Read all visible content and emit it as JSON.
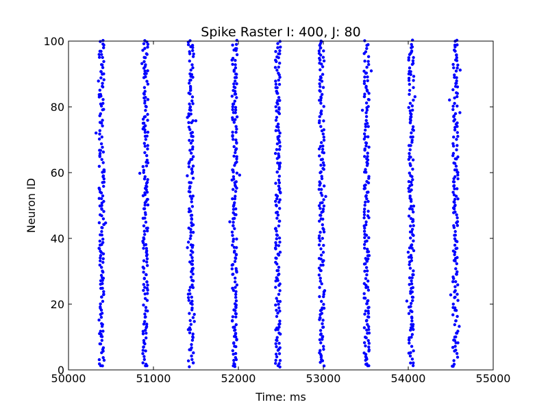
{
  "chart_data": {
    "type": "scatter",
    "title": "Spike Raster I: 400, J: 80",
    "xlabel": "Time: ms",
    "ylabel": "Neuron ID",
    "xlim": [
      50000,
      55000
    ],
    "ylim": [
      0,
      100
    ],
    "xticks": [
      50000,
      51000,
      52000,
      53000,
      54000,
      55000
    ],
    "xtick_labels": [
      "50000",
      "51000",
      "52000",
      "53000",
      "54000",
      "55000"
    ],
    "yticks": [
      0,
      20,
      40,
      60,
      80,
      100
    ],
    "ytick_labels": [
      "0",
      "20",
      "40",
      "60",
      "80",
      "100"
    ],
    "grid": false,
    "marker_color": "#0000ff",
    "series": [
      {
        "marker": "dot",
        "color": "#0000ff",
        "neuron_id_range": [
          1,
          100
        ],
        "burst_times_ms": [
          50390,
          50905,
          51440,
          51955,
          52465,
          52980,
          53510,
          54035,
          54555
        ]
      }
    ]
  }
}
